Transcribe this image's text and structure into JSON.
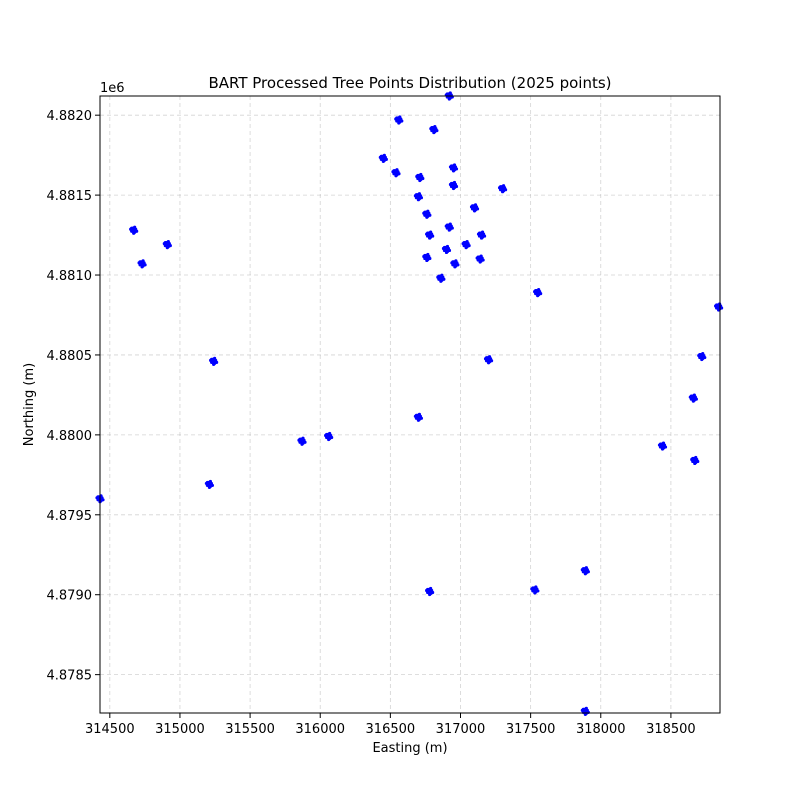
{
  "chart_data": {
    "type": "scatter",
    "title": "BART Processed Tree Points Distribution (2025 points)",
    "xlabel": "Easting (m)",
    "ylabel": "Northing (m)",
    "y_offset_label": "1e6",
    "xlim": [
      314430,
      318850
    ],
    "ylim": [
      4878260,
      4882120
    ],
    "grid": true,
    "x_ticks": [
      314500,
      315000,
      315500,
      316000,
      316500,
      317000,
      317500,
      318000,
      318500
    ],
    "x_tick_labels": [
      "314500",
      "315000",
      "315500",
      "316000",
      "316500",
      "317000",
      "317500",
      "318000",
      "318500"
    ],
    "y_ticks": [
      4878500,
      4879000,
      4879500,
      4880000,
      4880500,
      4881000,
      4881500,
      4882000
    ],
    "y_tick_labels": [
      "4.8785",
      "4.8790",
      "4.8795",
      "4.8800",
      "4.8805",
      "4.8810",
      "4.8815",
      "4.8820"
    ],
    "series": [
      {
        "color": "#0000ff",
        "clusters": [
          [
            316920,
            4882120
          ],
          [
            316560,
            4881970
          ],
          [
            316810,
            4881910
          ],
          [
            316450,
            4881730
          ],
          [
            316950,
            4881670
          ],
          [
            316540,
            4881640
          ],
          [
            316710,
            4881610
          ],
          [
            316950,
            4881560
          ],
          [
            317300,
            4881540
          ],
          [
            316700,
            4881490
          ],
          [
            317100,
            4881420
          ],
          [
            316760,
            4881380
          ],
          [
            316920,
            4881300
          ],
          [
            314670,
            4881280
          ],
          [
            316780,
            4881250
          ],
          [
            317150,
            4881250
          ],
          [
            314910,
            4881190
          ],
          [
            317040,
            4881190
          ],
          [
            316900,
            4881160
          ],
          [
            316760,
            4881110
          ],
          [
            317140,
            4881100
          ],
          [
            314730,
            4881070
          ],
          [
            316960,
            4881070
          ],
          [
            316860,
            4880980
          ],
          [
            317550,
            4880890
          ],
          [
            318840,
            4880800
          ],
          [
            318720,
            4880490
          ],
          [
            317200,
            4880470
          ],
          [
            315240,
            4880460
          ],
          [
            318660,
            4880230
          ],
          [
            316700,
            4880110
          ],
          [
            316060,
            4879990
          ],
          [
            315870,
            4879960
          ],
          [
            318440,
            4879930
          ],
          [
            318670,
            4879840
          ],
          [
            315210,
            4879690
          ],
          [
            314430,
            4879600
          ],
          [
            317890,
            4879150
          ],
          [
            316780,
            4879020
          ],
          [
            317530,
            4879030
          ],
          [
            317890,
            4878270
          ]
        ]
      }
    ]
  }
}
